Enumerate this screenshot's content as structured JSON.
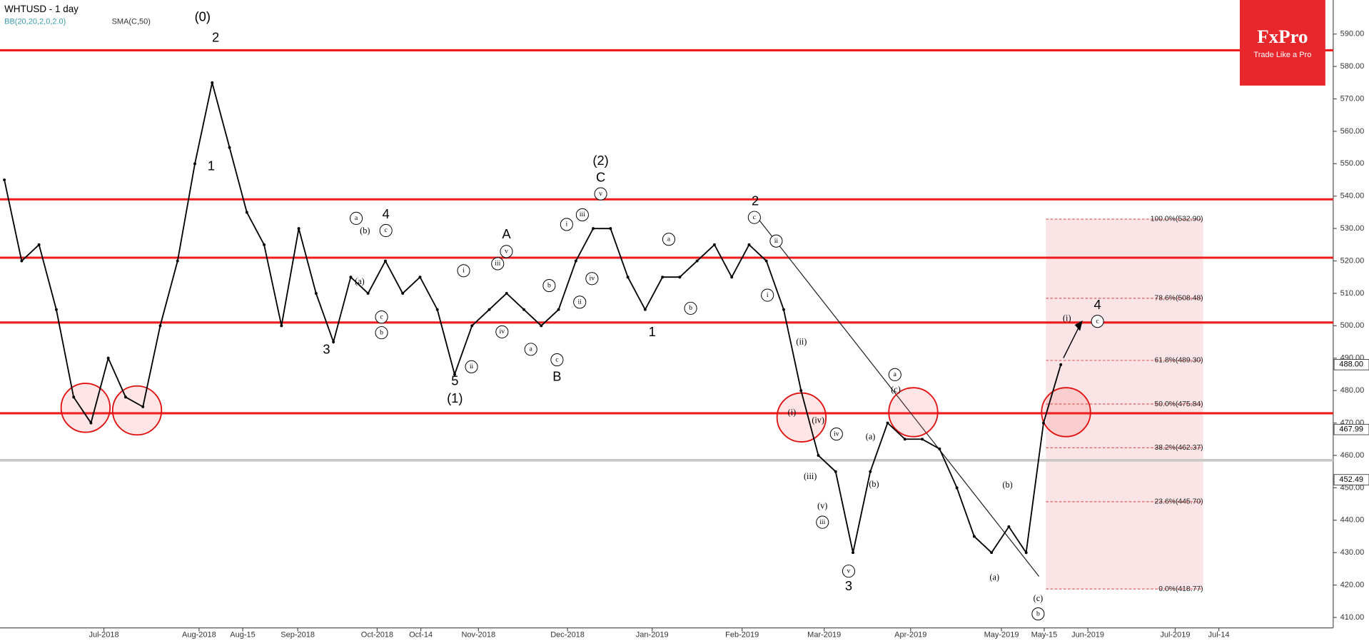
{
  "chart_data": {
    "type": "line",
    "title": "WHTUSD - 1 day",
    "indicators": [
      "BB(20,20,2,0,2.0)",
      "SMA(C,50)"
    ],
    "color": "#000000",
    "values": [
      545,
      520,
      525,
      505,
      478,
      470,
      490,
      478,
      475,
      500,
      520,
      550,
      575,
      555,
      535,
      525,
      500,
      530,
      510,
      495,
      515,
      510,
      520,
      510,
      515,
      505,
      485,
      500,
      505,
      510,
      505,
      500,
      505,
      520,
      530,
      530,
      515,
      505,
      515,
      515,
      520,
      525,
      515,
      525,
      520,
      505,
      480,
      460,
      455,
      430,
      455,
      470,
      465,
      465,
      462,
      450,
      435,
      430,
      438,
      430,
      470,
      488
    ],
    "ylim": [
      406.77,
      600.51
    ],
    "yticks": [
      {
        "value": 590,
        "label": "590.00"
      },
      {
        "value": 580,
        "label": "580.00"
      },
      {
        "value": 570,
        "label": "570.00"
      },
      {
        "value": 560,
        "label": "560.00"
      },
      {
        "value": 550,
        "label": "550.00"
      },
      {
        "value": 540,
        "label": "540.00"
      },
      {
        "value": 530,
        "label": "530.00"
      },
      {
        "value": 520,
        "label": "520.00"
      },
      {
        "value": 510,
        "label": "510.00"
      },
      {
        "value": 500,
        "label": "500.00"
      },
      {
        "value": 490,
        "label": "490.00"
      },
      {
        "value": 480,
        "label": "480.00"
      },
      {
        "value": 470,
        "label": "470.00"
      },
      {
        "value": 460,
        "label": "460.00"
      },
      {
        "value": 450,
        "label": "450.00"
      },
      {
        "value": 440,
        "label": "440.00"
      },
      {
        "value": 430,
        "label": "430.00"
      },
      {
        "value": 420,
        "label": "420.00"
      },
      {
        "value": 410,
        "label": "410.00"
      }
    ],
    "x_labels": [
      "Jul-2018",
      "Aug-2018",
      "Aug-15",
      "Sep-2018",
      "Oct-2018",
      "Oct-14",
      "Nov-2018",
      "Dec-2018",
      "Jan-2019",
      "Feb-2019",
      "Mar-2019",
      "Apr-2019",
      "May-2019",
      "May-15",
      "Jun-2019",
      "Jul-2019",
      "Jul-14"
    ],
    "hlines": {
      "color": "#ee1c1c",
      "values": [
        585,
        539,
        521,
        501,
        473
      ]
    },
    "support_line": {
      "color": "#c8c8c8",
      "value": 458.5
    },
    "price_tags": [
      {
        "value": 488,
        "label": "488.00"
      },
      {
        "value": 467.99,
        "label": "467.99"
      },
      {
        "value": 452.49,
        "label": "452.49"
      }
    ],
    "fib": {
      "levels": [
        {
          "value": 532.9,
          "label": "100.0%(532.90)"
        },
        {
          "value": 508.48,
          "label": "78.6%(508.48)"
        },
        {
          "value": 489.3,
          "label": "61.8%(489.30)"
        },
        {
          "value": 475.84,
          "label": "50.0%(475.84)"
        },
        {
          "value": 462.37,
          "label": "38.2%(462.37)"
        },
        {
          "value": 445.7,
          "label": "23.6%(445.70)"
        },
        {
          "value": 418.77,
          "label": "0.0%(418.77)"
        }
      ]
    },
    "annotations": [
      "(0)",
      "2",
      "1",
      "4",
      "3",
      "5",
      "(1)",
      "A",
      "B",
      "(2)",
      "C",
      "1",
      "2",
      "3",
      "4",
      "a",
      "c",
      "(b)",
      "(a)",
      "c",
      "b",
      "i",
      "iii",
      "v",
      "iv",
      "ii",
      "a",
      "c",
      "b",
      "i",
      "iii",
      "v",
      "iv",
      "ii",
      "a",
      "b",
      "c",
      "ii",
      "i",
      "(ii)",
      "(i)",
      "(iv)",
      "(iii)",
      "(v)",
      "iii",
      "iv",
      "v",
      "(a)",
      "(b)",
      "a",
      "(c)",
      "(b)",
      "(a)",
      "(c)",
      "b",
      "(i)",
      "c"
    ]
  },
  "logo": {
    "brand": "FxPro",
    "tagline": "Trade Like a Pro"
  }
}
